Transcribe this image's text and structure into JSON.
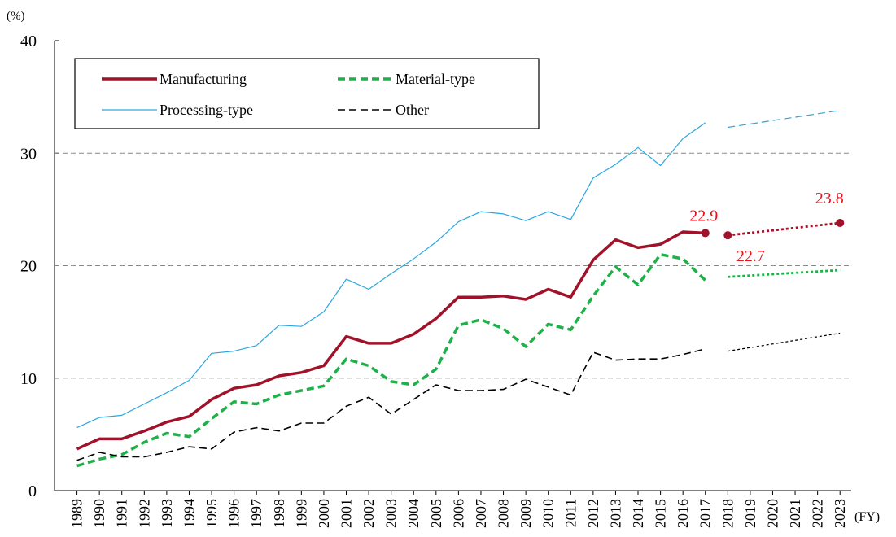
{
  "chart_data": {
    "type": "line",
    "y_unit": "(%)",
    "x_unit": "(FY)",
    "x": [
      1989,
      1990,
      1991,
      1992,
      1993,
      1994,
      1995,
      1996,
      1997,
      1998,
      1999,
      2000,
      2001,
      2002,
      2003,
      2004,
      2005,
      2006,
      2007,
      2008,
      2009,
      2010,
      2011,
      2012,
      2013,
      2014,
      2015,
      2016,
      2017
    ],
    "xlim": [
      1988,
      2023.5
    ],
    "xticks": [
      1989,
      1990,
      1991,
      1992,
      1993,
      1994,
      1995,
      1996,
      1997,
      1998,
      1999,
      2000,
      2001,
      2002,
      2003,
      2004,
      2005,
      2006,
      2007,
      2008,
      2009,
      2010,
      2011,
      2012,
      2013,
      2014,
      2015,
      2016,
      2017,
      2018,
      2019,
      2020,
      2021,
      2022,
      2023
    ],
    "ylim": [
      0,
      40
    ],
    "yticks": [
      0,
      10,
      20,
      30,
      40
    ],
    "grid": true,
    "series": [
      {
        "name": "Manufacturing",
        "color": "#a0122a",
        "style": "solid",
        "width": 3.5,
        "values": [
          3.7,
          4.6,
          4.6,
          5.3,
          6.1,
          6.6,
          8.1,
          9.1,
          9.4,
          10.2,
          10.5,
          11.1,
          13.7,
          13.1,
          13.1,
          13.9,
          15.3,
          17.2,
          17.2,
          17.3,
          17.0,
          17.9,
          17.2,
          20.5,
          22.3,
          21.6,
          21.9,
          23.0,
          22.9
        ],
        "value_labels": [
          null,
          null,
          null,
          null,
          null,
          null,
          null,
          null,
          null,
          null,
          null,
          null,
          null,
          null,
          null,
          null,
          null,
          null,
          null,
          null,
          null,
          null,
          null,
          null,
          null,
          null,
          null,
          null,
          "22.9"
        ],
        "projection": {
          "x": [
            2018,
            2023
          ],
          "values": [
            22.7,
            23.8
          ],
          "value_labels": [
            "22.7",
            "23.8"
          ],
          "style": "dotted"
        }
      },
      {
        "name": "Material-type",
        "color": "#1fb04a",
        "style": "dashed",
        "width": 3.5,
        "values": [
          2.2,
          2.8,
          3.2,
          4.3,
          5.1,
          4.8,
          6.4,
          7.9,
          7.7,
          8.5,
          8.9,
          9.3,
          11.7,
          11.1,
          9.7,
          9.4,
          10.8,
          14.7,
          15.2,
          14.4,
          12.8,
          14.8,
          14.3,
          17.3,
          19.9,
          18.3,
          21.0,
          20.6,
          18.7
        ],
        "projection": {
          "x": [
            2018,
            2023
          ],
          "values": [
            19.0,
            19.6
          ],
          "style": "dotted"
        }
      },
      {
        "name": "Processing-type",
        "color": "#2aa7e0",
        "style": "solid",
        "width": 1.2,
        "values": [
          5.6,
          6.5,
          6.7,
          7.7,
          8.7,
          9.8,
          12.2,
          12.4,
          12.9,
          14.7,
          14.6,
          15.9,
          18.8,
          17.9,
          19.3,
          20.6,
          22.1,
          23.9,
          24.8,
          24.6,
          24.0,
          24.8,
          24.1,
          27.8,
          29.0,
          30.5,
          28.9,
          31.3,
          32.7
        ],
        "projection": {
          "x": [
            2018,
            2023
          ],
          "values": [
            32.3,
            33.8
          ],
          "style": "dashed"
        }
      },
      {
        "name": "Other",
        "color": "#000000",
        "style": "dashed",
        "width": 1.6,
        "values": [
          2.7,
          3.4,
          3.0,
          3.0,
          3.4,
          3.9,
          3.7,
          5.2,
          5.6,
          5.3,
          6.0,
          6.0,
          7.5,
          8.3,
          6.8,
          8.1,
          9.4,
          8.9,
          8.9,
          9.0,
          9.9,
          9.2,
          8.5,
          12.3,
          11.6,
          11.7,
          11.7,
          12.1,
          12.6
        ],
        "projection": {
          "x": [
            2018,
            2023
          ],
          "values": [
            12.4,
            14.0
          ],
          "style": "dotted"
        }
      }
    ],
    "label_color": "#e8141c"
  }
}
